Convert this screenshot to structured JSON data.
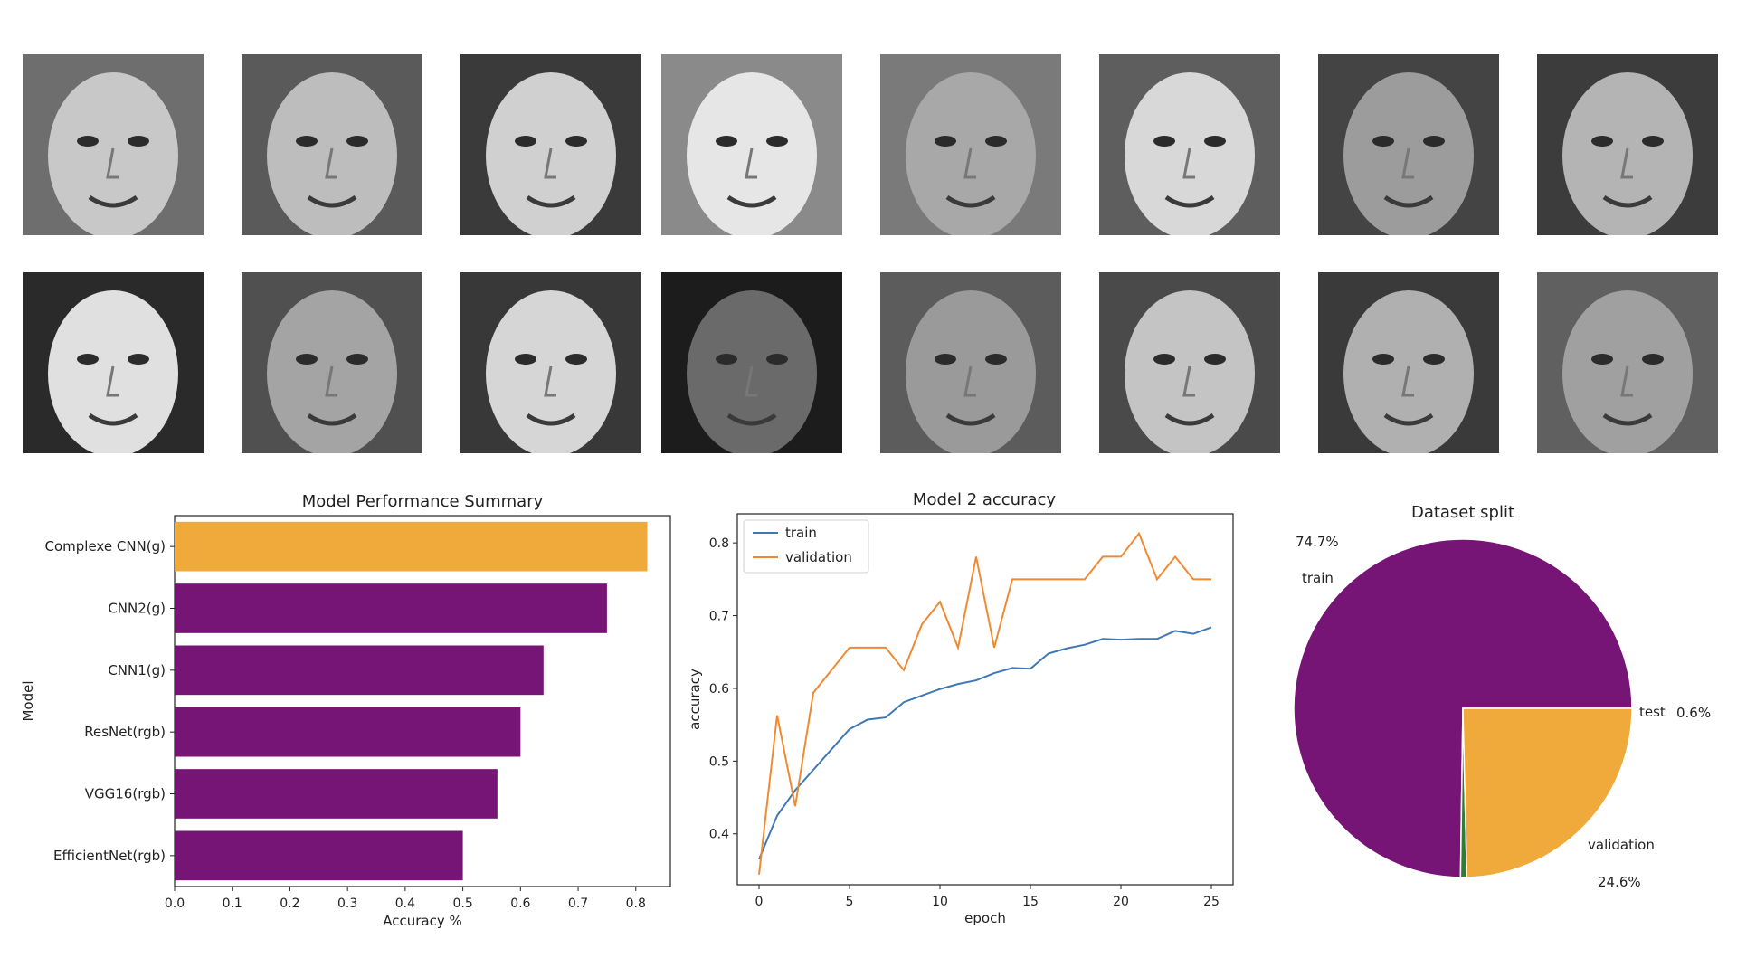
{
  "faces": {
    "row1": [
      "face-1",
      "face-2",
      "face-3",
      "face-4",
      "face-5",
      "face-6",
      "face-7",
      "face-8"
    ],
    "row2": [
      "face-9",
      "face-10",
      "face-11",
      "face-12",
      "face-13",
      "face-14",
      "face-15",
      "face-16"
    ]
  },
  "chart_data": [
    {
      "type": "bar",
      "orientation": "horizontal",
      "title": "Model Performance Summary",
      "xlabel": "Accuracy %",
      "ylabel": "Model",
      "categories": [
        "Complexe CNN(g)",
        "CNN2(g)",
        "CNN1(g)",
        "ResNet(rgb)",
        "VGG16(rgb)",
        "EfficientNet(rgb)"
      ],
      "values": [
        0.82,
        0.75,
        0.64,
        0.6,
        0.56,
        0.5
      ],
      "colors": [
        "#f0a93b",
        "#761575",
        "#761575",
        "#761575",
        "#761575",
        "#761575"
      ],
      "xlim": [
        0,
        0.86
      ],
      "xticks": [
        "0.0",
        "0.1",
        "0.2",
        "0.3",
        "0.4",
        "0.5",
        "0.6",
        "0.7",
        "0.8"
      ]
    },
    {
      "type": "line",
      "title": "Model 2 accuracy",
      "xlabel": "epoch",
      "ylabel": "accuracy",
      "xlim": [
        -1.2,
        26.2
      ],
      "ylim": [
        0.33,
        0.84
      ],
      "xticks": [
        0,
        5,
        10,
        15,
        20,
        25
      ],
      "yticks": [
        0.4,
        0.5,
        0.6,
        0.7,
        0.8
      ],
      "legend_position": "top-left",
      "x": [
        0,
        1,
        2,
        3,
        4,
        5,
        6,
        7,
        8,
        9,
        10,
        11,
        12,
        13,
        14,
        15,
        16,
        17,
        18,
        19,
        20,
        21,
        22,
        23,
        24,
        25
      ],
      "series": [
        {
          "name": "train",
          "color": "#3f78b5",
          "values": [
            0.365,
            0.425,
            0.46,
            0.488,
            0.516,
            0.544,
            0.557,
            0.56,
            0.581,
            0.59,
            0.599,
            0.606,
            0.611,
            0.621,
            0.628,
            0.627,
            0.648,
            0.655,
            0.66,
            0.668,
            0.667,
            0.668,
            0.668,
            0.679,
            0.675,
            0.684
          ]
        },
        {
          "name": "validation",
          "color": "#ef8a33",
          "values": [
            0.344,
            0.563,
            0.438,
            0.594,
            0.625,
            0.656,
            0.656,
            0.656,
            0.625,
            0.688,
            0.719,
            0.656,
            0.781,
            0.656,
            0.75,
            0.75,
            0.75,
            0.75,
            0.75,
            0.781,
            0.781,
            0.813,
            0.75,
            0.781,
            0.75,
            0.75
          ]
        }
      ]
    },
    {
      "type": "pie",
      "title": "Dataset split",
      "slices": [
        {
          "label": "train",
          "value": 74.7,
          "pct_label": "74.7%",
          "color": "#761575"
        },
        {
          "label": "test",
          "value": 0.6,
          "pct_label": "0.6%",
          "color": "#2e7d32"
        },
        {
          "label": "validation",
          "value": 24.6,
          "pct_label": "24.6%",
          "color": "#f0a93b"
        }
      ]
    }
  ]
}
